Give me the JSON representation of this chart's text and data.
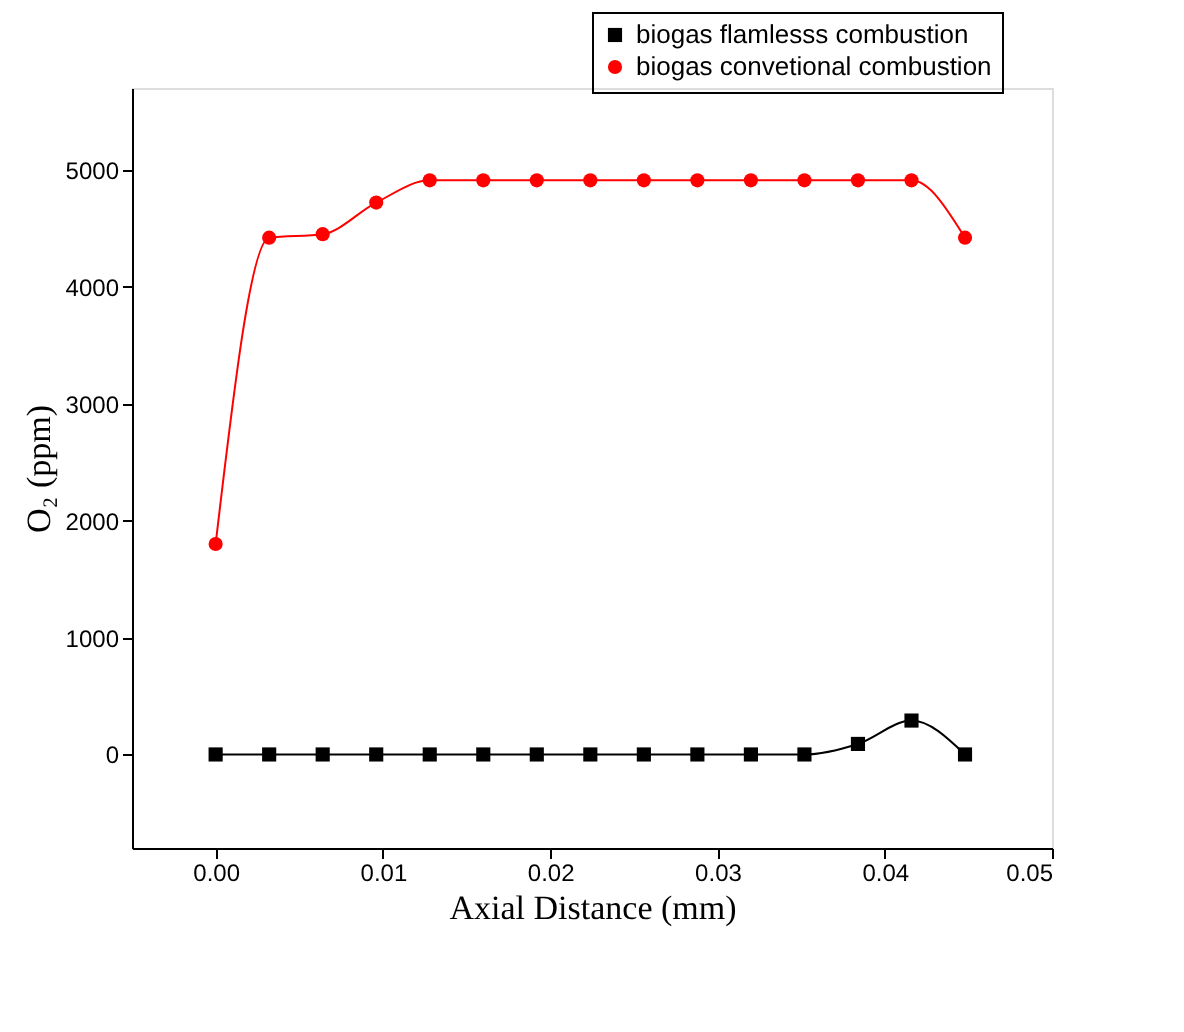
{
  "chart_data": {
    "type": "line",
    "xlabel": "Axial Distance (mm)",
    "ylabel": "O₂ (ppm)",
    "x": [
      0,
      0.0032,
      0.0064,
      0.0096,
      0.0128,
      0.016,
      0.0192,
      0.0224,
      0.0256,
      0.0288,
      0.032,
      0.0352,
      0.0384,
      0.0416,
      0.0448
    ],
    "series": [
      {
        "name": "biogas flamlesss combustion",
        "color": "#000000",
        "marker": "square",
        "values": [
          0,
          0,
          0,
          0,
          0,
          0,
          0,
          0,
          0,
          0,
          0,
          0,
          90,
          290,
          0
        ]
      },
      {
        "name": "biogas convetional combustion",
        "color": "#ff0000",
        "marker": "circle",
        "values": [
          1800,
          4420,
          4450,
          4720,
          4910,
          4910,
          4910,
          4910,
          4910,
          4910,
          4910,
          4910,
          4910,
          4910,
          4420
        ]
      }
    ],
    "xlim": [
      -0.005,
      0.05
    ],
    "ylim": [
      -800,
      5700
    ],
    "xticks": [
      {
        "value": 0,
        "label": "0.00"
      },
      {
        "value": 0.01,
        "label": "0.01"
      },
      {
        "value": 0.02,
        "label": "0.02"
      },
      {
        "value": 0.03,
        "label": "0.03"
      },
      {
        "value": 0.04,
        "label": "0.04"
      },
      {
        "value": 0.05,
        "label": "0.05"
      }
    ],
    "yticks": [
      0,
      1000,
      2000,
      3000,
      4000,
      5000
    ],
    "grid": false,
    "legend": "top right",
    "line_style": "solid"
  }
}
